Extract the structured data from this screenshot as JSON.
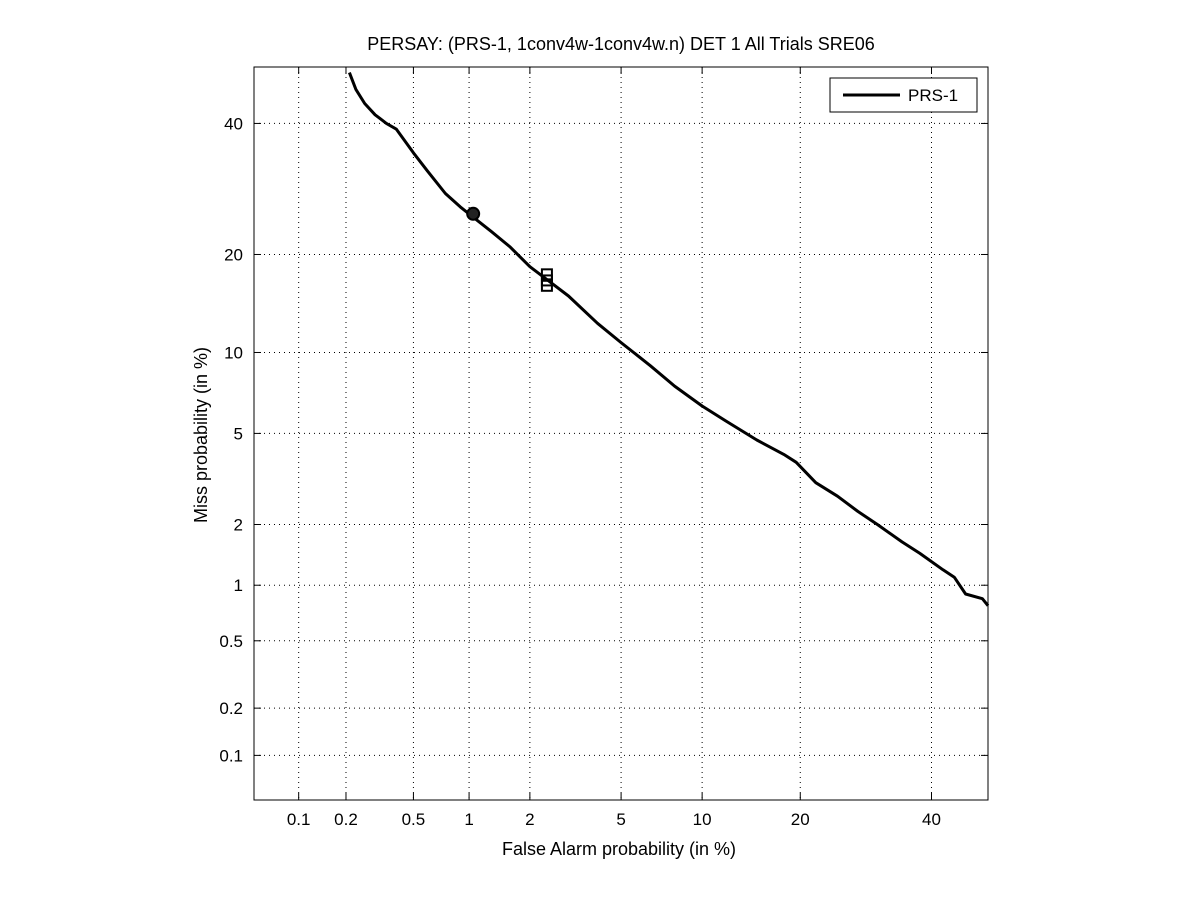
{
  "chart_data": {
    "type": "line",
    "title": "PERSAY: (PRS-1, 1conv4w-1conv4w.n) DET 1 All Trials SRE06",
    "xlabel": "False Alarm probability (in %)",
    "ylabel": "Miss probability (in %)",
    "x_scale": "normal-deviate (probit)",
    "y_scale": "normal-deviate (probit)",
    "xlim": [
      0.05,
      50
    ],
    "ylim": [
      0.05,
      50
    ],
    "x_ticks": [
      0.1,
      0.2,
      0.5,
      1,
      2,
      5,
      10,
      20,
      40
    ],
    "x_tick_labels": [
      "0.1",
      "0.2",
      "0.5",
      "1",
      "2",
      "5",
      "10",
      "20",
      "40"
    ],
    "y_ticks": [
      0.1,
      0.2,
      0.5,
      1,
      2,
      5,
      10,
      20,
      40
    ],
    "y_tick_labels": [
      "0.1",
      "0.2",
      "0.5",
      "1",
      "2",
      "5",
      "10",
      "20",
      "40"
    ],
    "grid": true,
    "legend_position": "top-right",
    "series": [
      {
        "name": "PRS-1",
        "color": "#000000",
        "x": [
          0.21,
          0.23,
          0.26,
          0.3,
          0.35,
          0.4,
          0.5,
          0.6,
          0.75,
          0.9,
          1.05,
          1.3,
          1.6,
          2.0,
          2.4,
          3.0,
          4.0,
          5.0,
          6.5,
          8.0,
          10.0,
          12.0,
          15.0,
          18.0,
          19.5,
          22.0,
          25.0,
          28.0,
          31.0,
          35.0,
          38.0,
          42.0,
          44.0,
          46.0,
          49.0,
          50.0
        ],
        "y": [
          49.0,
          46.0,
          43.5,
          41.5,
          40.0,
          39.0,
          35.0,
          32.0,
          28.5,
          26.5,
          25.0,
          23.0,
          21.0,
          18.5,
          17.0,
          15.2,
          12.5,
          10.8,
          9.0,
          7.6,
          6.4,
          5.6,
          4.7,
          4.1,
          3.8,
          3.1,
          2.7,
          2.3,
          2.0,
          1.65,
          1.45,
          1.2,
          1.1,
          0.9,
          0.85,
          0.78
        ]
      }
    ],
    "markers": [
      {
        "shape": "circle",
        "x": 1.05,
        "y": 25.5
      },
      {
        "shape": "square",
        "x": 2.4,
        "y": 17.6
      },
      {
        "shape": "square",
        "x": 2.4,
        "y": 16.9
      },
      {
        "shape": "square",
        "x": 2.4,
        "y": 16.3
      }
    ]
  }
}
